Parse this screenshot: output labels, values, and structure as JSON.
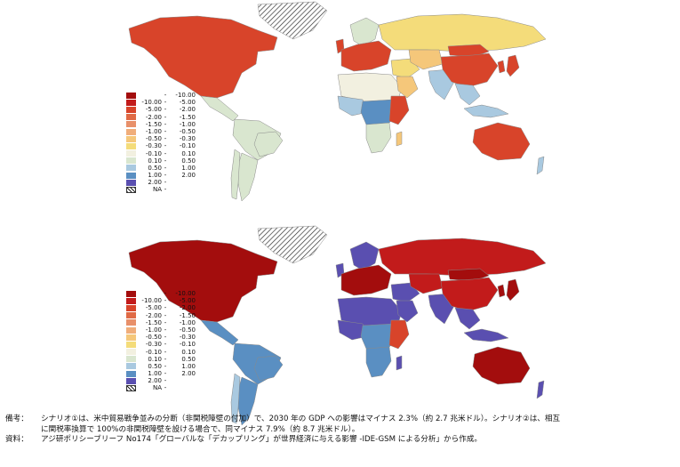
{
  "maps": [
    {
      "id": "scenario1",
      "legend": [
        {
          "lo": "",
          "hi": "-10.00",
          "color": "#a30d0d"
        },
        {
          "lo": "-10.00",
          "hi": "-5.00",
          "color": "#c21b1b"
        },
        {
          "lo": "-5.00",
          "hi": "-2.00",
          "color": "#d8442a"
        },
        {
          "lo": "-2.00",
          "hi": "-1.50",
          "color": "#e06a45"
        },
        {
          "lo": "-1.50",
          "hi": "-1.00",
          "color": "#e8906a"
        },
        {
          "lo": "-1.00",
          "hi": "-0.50",
          "color": "#f0ad7a"
        },
        {
          "lo": "-0.50",
          "hi": "-0.30",
          "color": "#f5c77a"
        },
        {
          "lo": "-0.30",
          "hi": "-0.10",
          "color": "#f4dc7a"
        },
        {
          "lo": "-0.10",
          "hi": "0.10",
          "color": "#f2f0e0"
        },
        {
          "lo": "0.10",
          "hi": "0.50",
          "color": "#d9e6cf"
        },
        {
          "lo": "0.50",
          "hi": "1.00",
          "color": "#a9c9e0"
        },
        {
          "lo": "1.00",
          "hi": "2.00",
          "color": "#5a8fc2"
        },
        {
          "lo": "2.00",
          "hi": "",
          "color": "#5a4fb0"
        },
        {
          "lo": "NA",
          "hi": "",
          "color": "hatch"
        }
      ],
      "regions": {
        "north_america": "#d8442a",
        "greenland": "hatch",
        "central_america": "#d9e6cf",
        "south_america": "#d9e6cf",
        "brazil": "#d9e6cf",
        "argentina": "#d9e6cf",
        "chile": "#d9e6cf",
        "europe": "#d8442a",
        "uk": "#d8442a",
        "scandinavia": "#d9e6cf",
        "russia": "#f4dc7a",
        "north_africa": "#f2f0e0",
        "west_africa": "#a9c9e0",
        "central_africa": "#5a8fc2",
        "east_africa": "#d8442a",
        "south_africa": "#d9e6cf",
        "madagascar": "#f5c77a",
        "middle_east": "#f4dc7a",
        "arabia": "#f5c77a",
        "central_asia": "#f5c77a",
        "india": "#a9c9e0",
        "china": "#d8442a",
        "mongolia": "#d8442a",
        "southeast_asia": "#a9c9e0",
        "japan": "#d8442a",
        "korea": "#d8442a",
        "indonesia": "#a9c9e0",
        "australia": "#d8442a",
        "new_zealand": "#a9c9e0"
      }
    },
    {
      "id": "scenario2",
      "legend": [
        {
          "lo": "",
          "hi": "-10.00",
          "color": "#a30d0d"
        },
        {
          "lo": "-10.00",
          "hi": "-5.00",
          "color": "#c21b1b"
        },
        {
          "lo": "-5.00",
          "hi": "-2.00",
          "color": "#d8442a"
        },
        {
          "lo": "-2.00",
          "hi": "-1.50",
          "color": "#e06a45"
        },
        {
          "lo": "-1.50",
          "hi": "-1.00",
          "color": "#e8906a"
        },
        {
          "lo": "-1.00",
          "hi": "-0.50",
          "color": "#f0ad7a"
        },
        {
          "lo": "-0.50",
          "hi": "-0.30",
          "color": "#f5c77a"
        },
        {
          "lo": "-0.30",
          "hi": "-0.10",
          "color": "#f4dc7a"
        },
        {
          "lo": "-0.10",
          "hi": "0.10",
          "color": "#f2f0e0"
        },
        {
          "lo": "0.10",
          "hi": "0.50",
          "color": "#d9e6cf"
        },
        {
          "lo": "0.50",
          "hi": "1.00",
          "color": "#a9c9e0"
        },
        {
          "lo": "1.00",
          "hi": "2.00",
          "color": "#5a8fc2"
        },
        {
          "lo": "2.00",
          "hi": "",
          "color": "#5a4fb0"
        },
        {
          "lo": "NA",
          "hi": "",
          "color": "hatch"
        }
      ],
      "regions": {
        "north_america": "#a30d0d",
        "greenland": "hatch",
        "central_america": "#5a8fc2",
        "south_america": "#5a8fc2",
        "brazil": "#5a8fc2",
        "argentina": "#5a8fc2",
        "chile": "#a9c9e0",
        "europe": "#a30d0d",
        "uk": "#5a4fb0",
        "scandinavia": "#5a4fb0",
        "russia": "#c21b1b",
        "north_africa": "#5a4fb0",
        "west_africa": "#5a4fb0",
        "central_africa": "#5a8fc2",
        "east_africa": "#d8442a",
        "south_africa": "#5a8fc2",
        "madagascar": "#5a4fb0",
        "middle_east": "#5a4fb0",
        "arabia": "#5a4fb0",
        "central_asia": "#c21b1b",
        "india": "#5a4fb0",
        "china": "#c21b1b",
        "mongolia": "#a30d0d",
        "southeast_asia": "#5a4fb0",
        "japan": "#a30d0d",
        "korea": "#a30d0d",
        "indonesia": "#5a4fb0",
        "australia": "#a30d0d",
        "new_zealand": "#5a4fb0"
      }
    }
  ],
  "notes": {
    "label": "備考：",
    "line1": "シナリオ①は、米中貿易戦争並みの分断（非関税障壁の付加）で、2030 年の GDP への影響はマイナス 2.3%（約 2.7 兆米ドル）。シナリオ②は、相互",
    "line2": "に関税率換算で 100%の非関税障壁を設ける場合で、同マイナス 7.9%（約 8.7 兆米ドル）。",
    "source_label": "資料：",
    "source": "アジ研ポリシーブリーフ No174「グローバルな「デカップリング」が世界経済に与える影響 -IDE-GSM による分析」から作成。"
  }
}
